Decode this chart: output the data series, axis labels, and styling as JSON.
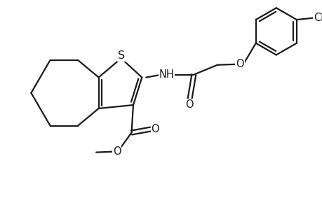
{
  "bg_color": "#ffffff",
  "line_color": "#1a1a1a",
  "line_width": 1.6,
  "font_size_atom": 10.5,
  "figsize": [
    4.6,
    3.0
  ],
  "dpi": 100,
  "xlim": [
    0,
    9.2
  ],
  "ylim": [
    0,
    6.0
  ]
}
